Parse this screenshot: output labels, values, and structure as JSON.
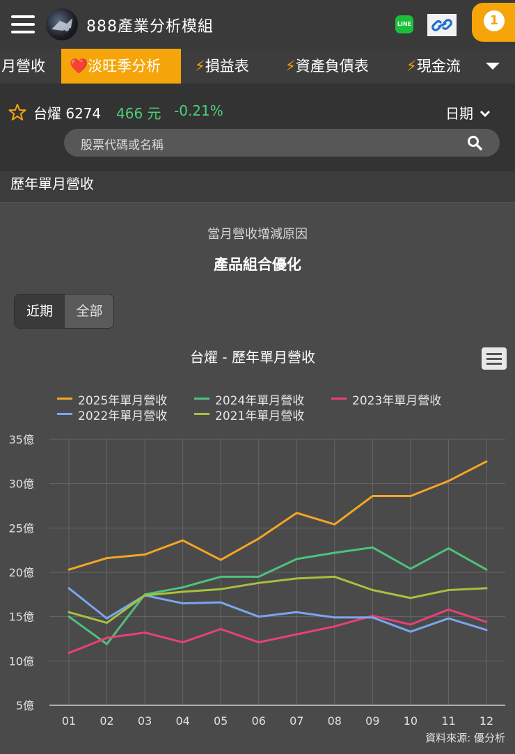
{
  "header": {
    "app_title": "888產業分析模組",
    "notification_count": "1",
    "line_label": "LINE"
  },
  "tabs": [
    {
      "label": "月營收",
      "icon": ""
    },
    {
      "label": "淡旺季分析",
      "icon": "❤️",
      "active": true
    },
    {
      "label": "損益表",
      "icon": "⚡"
    },
    {
      "label": "資產負債表",
      "icon": "⚡"
    },
    {
      "label": "現金流",
      "icon": "⚡"
    }
  ],
  "stock": {
    "name": "台燿 6274",
    "price": "466 元",
    "change": "-0.21%",
    "date_selector": "日期"
  },
  "search": {
    "placeholder": "股票代碼或名稱"
  },
  "section": {
    "title": "歷年單月營收"
  },
  "reason": {
    "label": "當月營收增減原因",
    "value": "產品組合優化"
  },
  "period_toggle": {
    "recent": "近期",
    "all": "全部"
  },
  "source": "資料來源: 優分析",
  "colors": {
    "accent": "#f5a50a",
    "up_down": "#4dd07a"
  },
  "chart_data": {
    "type": "line",
    "title": "台燿 - 歷年單月營收",
    "categories": [
      "01",
      "02",
      "03",
      "04",
      "05",
      "06",
      "07",
      "08",
      "09",
      "10",
      "11",
      "12"
    ],
    "yticks": [
      "5億",
      "10億",
      "15億",
      "20億",
      "25億",
      "30億",
      "35億"
    ],
    "ylim": [
      5,
      35
    ],
    "grid": true,
    "legend_position": "top",
    "series": [
      {
        "name": "2025年單月營收",
        "color": "#f5a623",
        "values": [
          20.3,
          21.6,
          22.0,
          23.6,
          21.4,
          23.8,
          26.7,
          25.4,
          28.6,
          28.6,
          30.3,
          32.5
        ]
      },
      {
        "name": "2024年單月營收",
        "color": "#4ec27d",
        "values": [
          15.0,
          11.9,
          17.5,
          18.3,
          19.5,
          19.5,
          21.5,
          22.2,
          22.8,
          20.4,
          22.7,
          20.3
        ]
      },
      {
        "name": "2023年單月營收",
        "color": "#e8407a",
        "values": [
          10.9,
          12.6,
          13.2,
          12.1,
          13.6,
          12.1,
          13.0,
          13.9,
          15.1,
          14.1,
          15.8,
          14.4
        ]
      },
      {
        "name": "2022年單月營收",
        "color": "#7aa6f0",
        "values": [
          18.2,
          14.8,
          17.4,
          16.5,
          16.6,
          15.0,
          15.5,
          14.9,
          14.9,
          13.3,
          14.8,
          13.5
        ]
      },
      {
        "name": "2021年單月營收",
        "color": "#a7c13e",
        "values": [
          15.5,
          14.3,
          17.4,
          17.8,
          18.1,
          18.8,
          19.3,
          19.5,
          18.0,
          17.1,
          18.0,
          18.2
        ]
      }
    ]
  }
}
